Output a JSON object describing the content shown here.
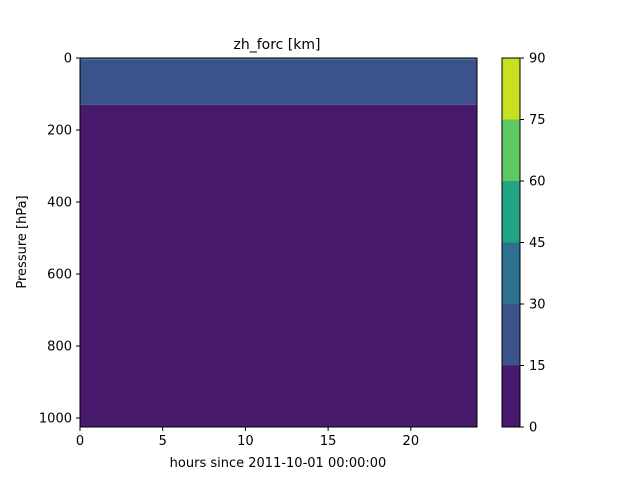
{
  "chart_data": {
    "type": "heatmap",
    "title": "zh_forc [km]",
    "xlabel": "hours since 2011-10-01 00:00:00",
    "ylabel": "Pressure [hPa]",
    "xlim": [
      0,
      24
    ],
    "ylim": [
      1025,
      0
    ],
    "y_inverted": true,
    "xticks": [
      0,
      5,
      10,
      15,
      20
    ],
    "yticks": [
      0,
      200,
      400,
      600,
      800,
      1000
    ],
    "colorbar": {
      "levels": [
        0,
        15,
        30,
        45,
        60,
        75,
        90
      ],
      "colors": [
        "#471a6e",
        "#3b528b",
        "#2c728e",
        "#21a585",
        "#5ec962",
        "#c8e020"
      ],
      "tick_labels": [
        "0",
        "15",
        "30",
        "45",
        "60",
        "75",
        "90"
      ]
    },
    "bands": [
      {
        "p_top": 0,
        "p_bottom": 5,
        "level_range": [
          30,
          45
        ]
      },
      {
        "p_top": 5,
        "p_bottom": 130,
        "level_range": [
          15,
          30
        ]
      },
      {
        "p_top": 130,
        "p_bottom": 1025,
        "level_range": [
          0,
          15
        ]
      }
    ]
  }
}
